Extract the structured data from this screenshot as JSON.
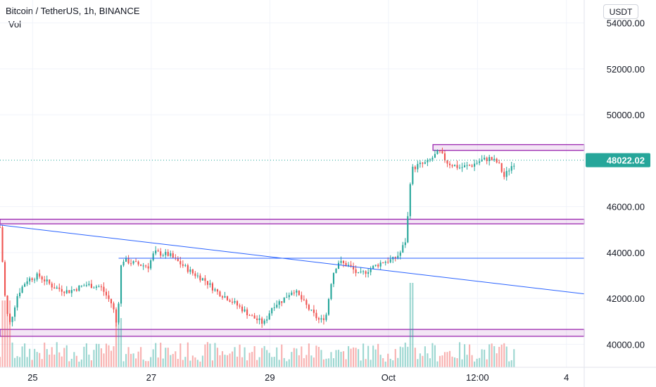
{
  "header": {
    "symbol_line": "Bitcoin / TetherUS, 1h, BINANCE",
    "indicator": "Vol",
    "currency_button": "USDT"
  },
  "colors": {
    "up": "#26a69a",
    "down": "#ef5350",
    "trendline": "#2962ff",
    "zone": "#9c27b0",
    "last_price": "#26a69a"
  },
  "chart_data": {
    "type": "candlestick",
    "symbol": "Bitcoin / TetherUS",
    "interval": "1h",
    "exchange": "BINANCE",
    "last_price": "48022.02",
    "y_axis": {
      "ylim": [
        39000,
        55000
      ],
      "ticks": [
        "54000.00",
        "52000.00",
        "50000.00",
        "46000.00",
        "44000.00",
        "42000.00",
        "40000.00"
      ]
    },
    "x_axis": {
      "ticks": [
        {
          "label": "25",
          "day": 25.0
        },
        {
          "label": "27",
          "day": 27.0
        },
        {
          "label": "29",
          "day": 29.0
        },
        {
          "label": "Oct",
          "day": 31.0
        },
        {
          "label": "12:00",
          "day": 32.5
        },
        {
          "label": "4",
          "day": 34.0
        }
      ],
      "xlim": [
        24.45,
        34.3
      ]
    },
    "price_path": [
      [
        24.45,
        45100
      ],
      [
        24.55,
        41500
      ],
      [
        24.62,
        40900
      ],
      [
        24.75,
        42200
      ],
      [
        24.9,
        42800
      ],
      [
        25.1,
        43000
      ],
      [
        25.35,
        42500
      ],
      [
        25.6,
        42300
      ],
      [
        25.9,
        42600
      ],
      [
        26.15,
        42500
      ],
      [
        26.35,
        41700
      ],
      [
        26.42,
        40800
      ],
      [
        26.5,
        43700
      ],
      [
        26.75,
        43500
      ],
      [
        26.95,
        43400
      ],
      [
        27.05,
        44000
      ],
      [
        27.3,
        43900
      ],
      [
        27.5,
        43500
      ],
      [
        27.7,
        43100
      ],
      [
        27.9,
        42800
      ],
      [
        28.1,
        42300
      ],
      [
        28.3,
        42000
      ],
      [
        28.5,
        41600
      ],
      [
        28.7,
        41200
      ],
      [
        28.9,
        40900
      ],
      [
        29.05,
        41700
      ],
      [
        29.2,
        41900
      ],
      [
        29.4,
        42400
      ],
      [
        29.55,
        41900
      ],
      [
        29.7,
        41400
      ],
      [
        29.85,
        41000
      ],
      [
        29.95,
        41300
      ],
      [
        30.05,
        43000
      ],
      [
        30.15,
        43600
      ],
      [
        30.35,
        43400
      ],
      [
        30.5,
        43000
      ],
      [
        30.7,
        43300
      ],
      [
        30.9,
        43600
      ],
      [
        31.1,
        43700
      ],
      [
        31.2,
        44000
      ],
      [
        31.3,
        44600
      ],
      [
        31.38,
        47600
      ],
      [
        31.5,
        47800
      ],
      [
        31.65,
        47900
      ],
      [
        31.85,
        48400
      ],
      [
        32.0,
        47900
      ],
      [
        32.2,
        47700
      ],
      [
        32.4,
        47800
      ],
      [
        32.55,
        48000
      ],
      [
        32.7,
        48100
      ],
      [
        32.85,
        47900
      ],
      [
        32.95,
        47300
      ],
      [
        33.05,
        47700
      ],
      [
        33.15,
        48000
      ]
    ],
    "volume_note": "volume bars per hourly candle",
    "lines": {
      "trendline": {
        "from": [
          24.45,
          45200
        ],
        "to": [
          34.3,
          42200
        ]
      },
      "horizontal": {
        "price": 43750,
        "from_day": 26.45
      },
      "zones": [
        {
          "from_day": 31.75,
          "low": 48450,
          "high": 48700
        },
        {
          "from_day": 24.45,
          "low": 45250,
          "high": 45450
        },
        {
          "from_day": 24.45,
          "low": 40350,
          "high": 40650
        }
      ]
    },
    "grid": true
  }
}
